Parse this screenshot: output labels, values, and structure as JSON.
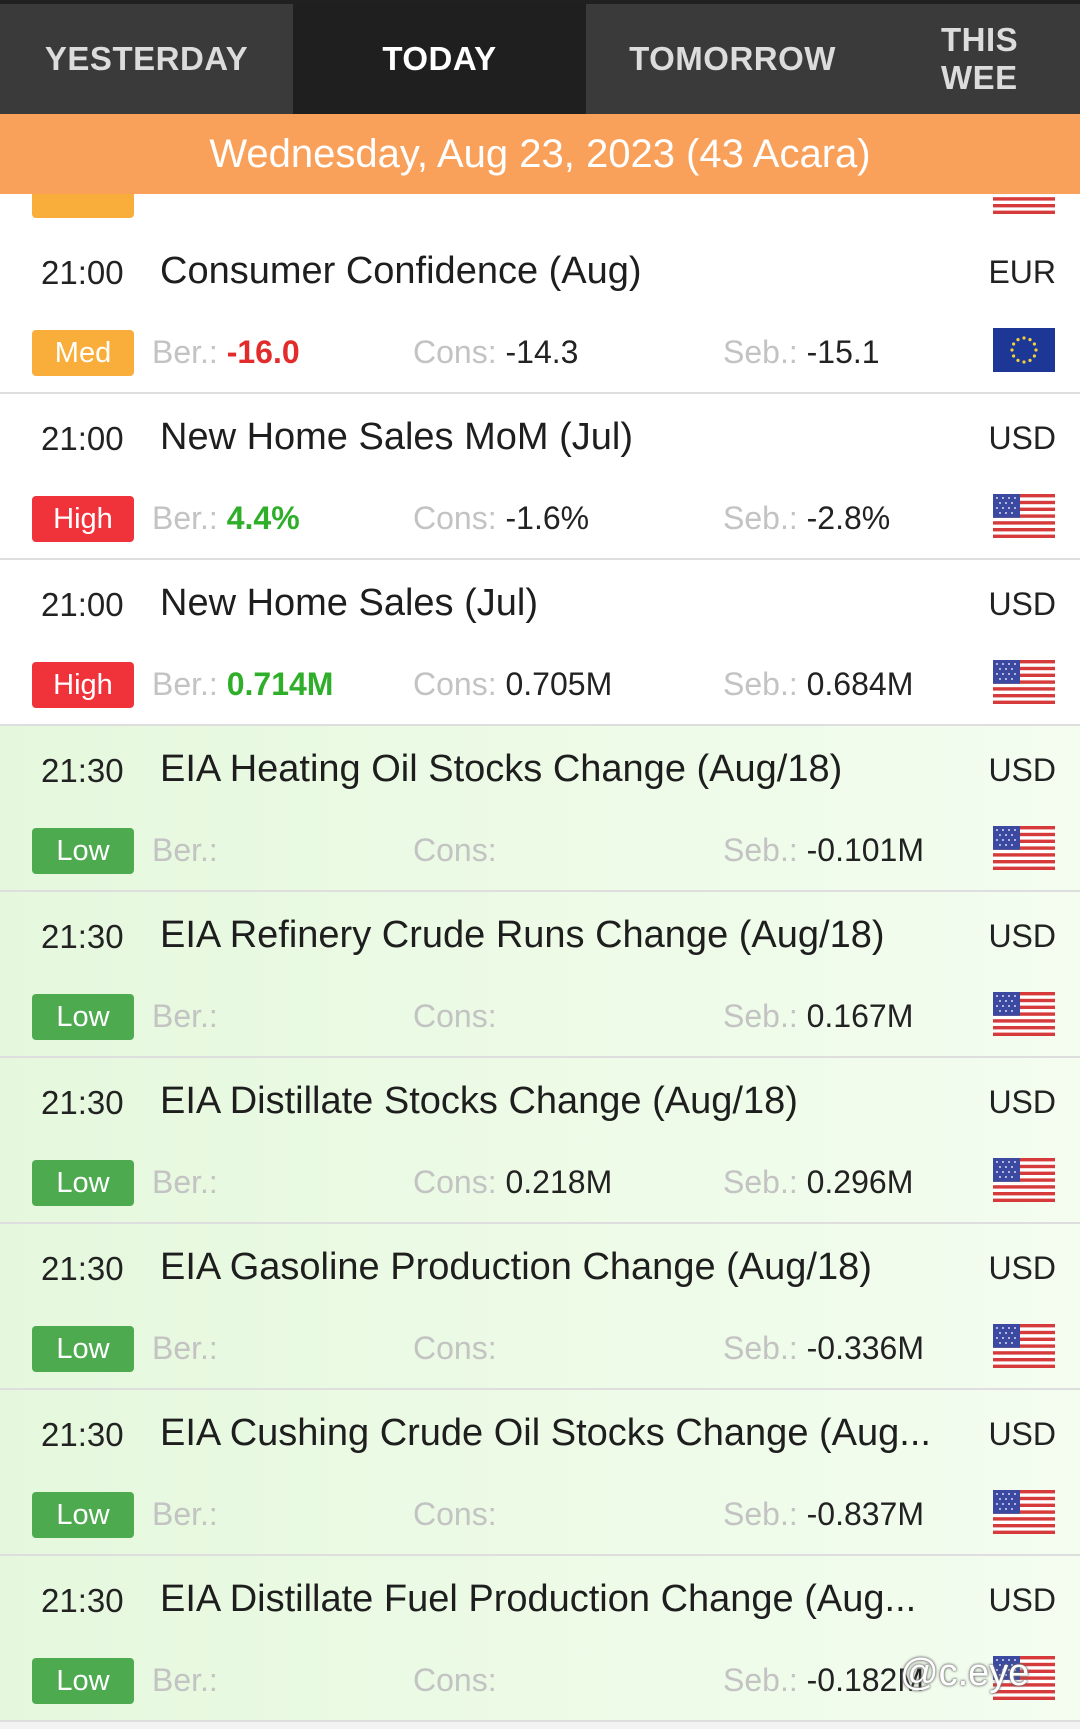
{
  "tabs": [
    "YESTERDAY",
    "TODAY",
    "TOMORROW",
    "THIS WEE"
  ],
  "date_banner": "Wednesday, Aug 23, 2023 (43 Acara)",
  "labels": {
    "ber": "Ber.:",
    "cons": "Cons:",
    "seb": "Seb.:"
  },
  "events": [
    {
      "time": "21:00",
      "title": "Consumer Confidence (Aug)",
      "currency": "EUR",
      "impact": "Med",
      "ber": "-16.0",
      "cons": "-14.3",
      "seb": "-15.1",
      "flag": "eu-flag-icon"
    },
    {
      "time": "21:00",
      "title": "New Home Sales MoM (Jul)",
      "currency": "USD",
      "impact": "High",
      "ber": "4.4%",
      "cons": "-1.6%",
      "seb": "-2.8%",
      "flag": "us-flag-icon"
    },
    {
      "time": "21:00",
      "title": "New Home Sales (Jul)",
      "currency": "USD",
      "impact": "High",
      "ber": "0.714M",
      "cons": "0.705M",
      "seb": "0.684M",
      "flag": "us-flag-icon"
    },
    {
      "time": "21:30",
      "title": "EIA Heating Oil Stocks Change (Aug/18)",
      "currency": "USD",
      "impact": "Low",
      "ber": "",
      "cons": "",
      "seb": "-0.101M",
      "flag": "us-flag-icon"
    },
    {
      "time": "21:30",
      "title": "EIA Refinery Crude Runs Change (Aug/18)",
      "currency": "USD",
      "impact": "Low",
      "ber": "",
      "cons": "",
      "seb": "0.167M",
      "flag": "us-flag-icon"
    },
    {
      "time": "21:30",
      "title": "EIA Distillate Stocks Change (Aug/18)",
      "currency": "USD",
      "impact": "Low",
      "ber": "",
      "cons": "0.218M",
      "seb": "0.296M",
      "flag": "us-flag-icon"
    },
    {
      "time": "21:30",
      "title": "EIA Gasoline Production Change (Aug/18)",
      "currency": "USD",
      "impact": "Low",
      "ber": "",
      "cons": "",
      "seb": "-0.336M",
      "flag": "us-flag-icon"
    },
    {
      "time": "21:30",
      "title": "EIA Cushing Crude Oil Stocks Change (Aug...",
      "currency": "USD",
      "impact": "Low",
      "ber": "",
      "cons": "",
      "seb": "-0.837M",
      "flag": "us-flag-icon"
    },
    {
      "time": "21:30",
      "title": "EIA Distillate Fuel Production Change (Aug...",
      "currency": "USD",
      "impact": "Low",
      "ber": "",
      "cons": "",
      "seb": "-0.182M",
      "flag": "us-flag-icon"
    }
  ],
  "colors": {
    "med": "#f9ad3a",
    "high": "#f0323a",
    "low": "#4daa4f",
    "banner": "#f9a15a",
    "ber_negative": "#e22b2b",
    "ber_positive": "#2fae2a"
  },
  "watermark": "@c.eye"
}
